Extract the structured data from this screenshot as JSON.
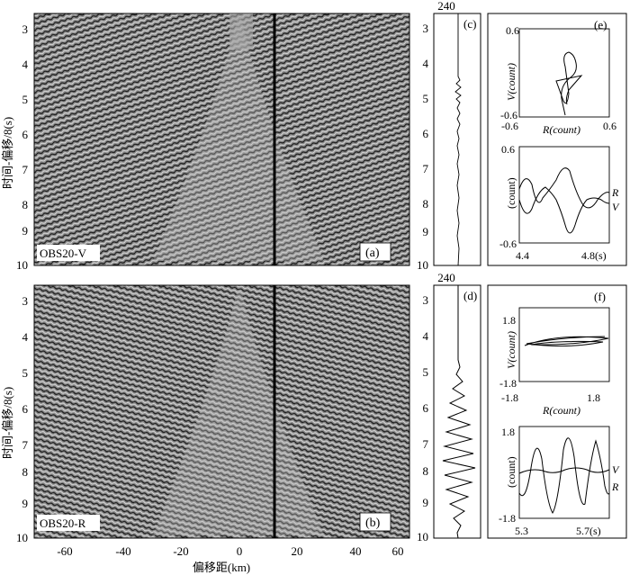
{
  "figure": {
    "x_axis_label": "偏移距(km)",
    "x_ticks": [
      "-60",
      "-40",
      "-20",
      "0",
      "20",
      "40",
      "60"
    ],
    "y_axis_label": "时间-偏移/8(s)",
    "y_ticks": [
      "3",
      "4",
      "5",
      "6",
      "7",
      "8",
      "9",
      "10"
    ]
  },
  "panels": {
    "a": {
      "label": "(a)",
      "station": "OBS20-V"
    },
    "b": {
      "label": "(b)",
      "station": "OBS20-R"
    },
    "c": {
      "label": "(c)",
      "trace_number": "240",
      "y_ticks": [
        "3",
        "4",
        "5",
        "6",
        "7",
        "8",
        "9",
        "10"
      ]
    },
    "d": {
      "label": "(d)",
      "trace_number": "240",
      "y_ticks": [
        "3",
        "4",
        "5",
        "6",
        "7",
        "8",
        "9",
        "10"
      ]
    },
    "e": {
      "label": "(e)",
      "particle": {
        "x_label": "R(count)",
        "y_label": "V(count)",
        "x_ticks": [
          "-0.6",
          "0.6"
        ],
        "y_ticks": [
          "0.6",
          "-0.6"
        ]
      },
      "wave": {
        "y_label": "(count)",
        "y_ticks": [
          "0.6",
          "-0.6"
        ],
        "x_ticks": [
          "4.4",
          "4.8(s)"
        ],
        "series_labels": [
          "R",
          "V"
        ]
      }
    },
    "f": {
      "label": "(f)",
      "particle": {
        "x_label": "R(count)",
        "y_label": "V(count)",
        "x_ticks": [
          "-1.8",
          "1.8"
        ],
        "y_ticks": [
          "1.8",
          "-1.8"
        ]
      },
      "wave": {
        "y_label": "(count)",
        "y_ticks": [
          "1.8",
          "-1.8"
        ],
        "x_ticks": [
          "5.3",
          "5.7(s)"
        ],
        "series_labels": [
          "V",
          "R"
        ]
      }
    }
  },
  "colors": {
    "background": "#ffffff",
    "seismic_mid": "#8a8a8a",
    "ink": "#000000"
  }
}
